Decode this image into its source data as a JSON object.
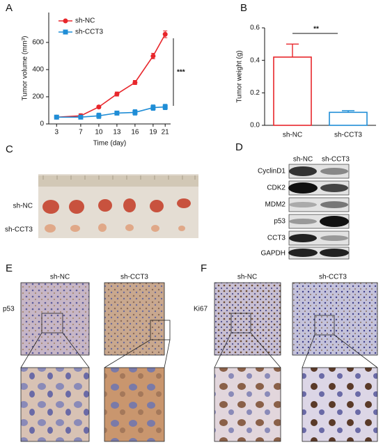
{
  "chart_data": [
    {
      "type": "line",
      "x_label": "Time (day)",
      "y_label": "Tumor volume (mm³)",
      "x": [
        3,
        7,
        10,
        13,
        16,
        19,
        21
      ],
      "xlim": [
        1.7,
        21.9
      ],
      "xticks": [
        3,
        7,
        10,
        13,
        16,
        19,
        21
      ],
      "ylim": [
        0,
        820
      ],
      "yticks": [
        0,
        200,
        400,
        600
      ],
      "legend": "upper left",
      "annotation": "***",
      "series": [
        {
          "name": "sh-NC",
          "color": "#e8262b",
          "marker": "circle",
          "values": [
            50,
            60,
            125,
            220,
            305,
            500,
            660
          ],
          "errors": [
            10,
            15,
            10,
            15,
            15,
            20,
            25
          ]
        },
        {
          "name": "sh-CCT3",
          "color": "#1f8dd6",
          "marker": "square",
          "values": [
            50,
            50,
            60,
            80,
            85,
            120,
            125
          ],
          "errors": [
            10,
            10,
            20,
            15,
            20,
            20,
            20
          ]
        }
      ]
    },
    {
      "type": "bar",
      "y_label": "Tumor weight (g)",
      "categories": [
        "sh-NC",
        "sh-CCT3"
      ],
      "values": [
        0.42,
        0.08
      ],
      "errors": [
        0.08,
        0.01
      ],
      "colors": [
        "#e8262b",
        "#1f8dd6"
      ],
      "ylim": [
        0,
        0.6
      ],
      "yticks": [
        {
          "value": 0,
          "label": "0.0"
        },
        0.2,
        0.4,
        0.6
      ],
      "annotation": "**"
    }
  ],
  "panel_labels": [
    "A",
    "B",
    "C",
    "D",
    "E",
    "F"
  ],
  "tumor_photo": {
    "row_labels": [
      "sh-NC",
      "sh-CCT3"
    ]
  },
  "western_blot": {
    "columns": [
      "sh-NC",
      "sh-CCT3"
    ],
    "rows": [
      "CyclinD1",
      "CDK2",
      "MDM2",
      "p53",
      "CCT3",
      "GAPDH"
    ]
  },
  "ihc_p53": {
    "columns": [
      "sh-NC",
      "sh-CCT3"
    ],
    "row_label": "p53"
  },
  "ihc_ki67": {
    "columns": [
      "sh-NC",
      "sh-CCT3"
    ],
    "row_label": "Ki67"
  }
}
